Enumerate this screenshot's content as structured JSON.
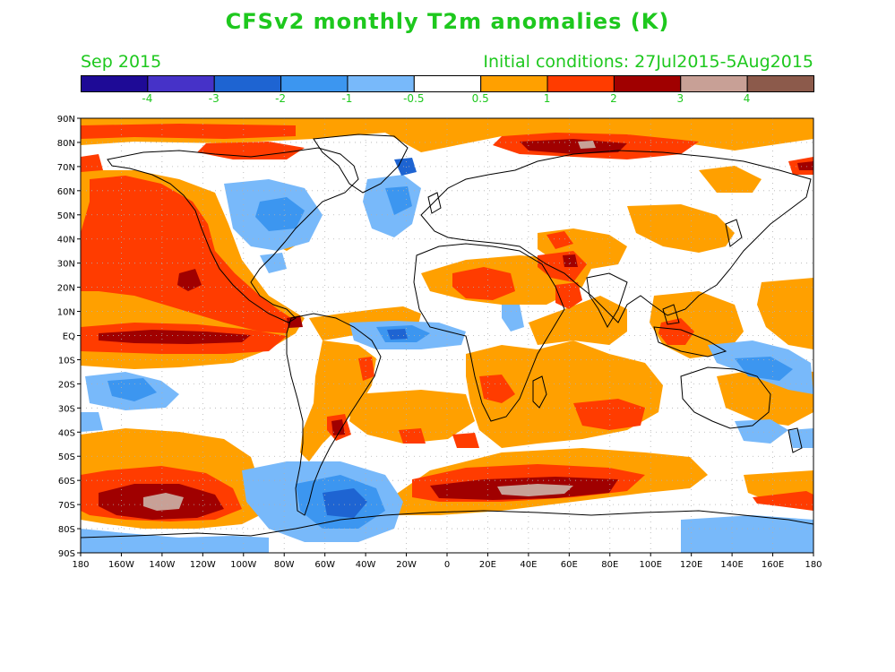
{
  "title": "CFSv2 monthly T2m anomalies (K)",
  "subtitle_left": "Sep 2015",
  "subtitle_right": "Initial conditions: 27Jul2015-5Aug2015",
  "colorbar": {
    "colors": [
      "#1e0a96",
      "#4632c8",
      "#1e64d2",
      "#3c96f0",
      "#78b9fa",
      "#ffffff",
      "#ffa000",
      "#ff3c00",
      "#a00000",
      "#c8a096",
      "#8c5a4b"
    ],
    "labels": [
      "-4",
      "-3",
      "-2",
      "-1",
      "-0.5",
      "0.5",
      "1",
      "2",
      "3",
      "4"
    ]
  },
  "axes": {
    "lat_labels": [
      "90N",
      "80N",
      "70N",
      "60N",
      "50N",
      "40N",
      "30N",
      "20N",
      "10N",
      "EQ",
      "10S",
      "20S",
      "30S",
      "40S",
      "50S",
      "60S",
      "70S",
      "80S",
      "90S"
    ],
    "lon_labels": [
      "180",
      "160W",
      "140W",
      "120W",
      "100W",
      "80W",
      "60W",
      "40W",
      "20W",
      "0",
      "20E",
      "40E",
      "60E",
      "80E",
      "100E",
      "120E",
      "140E",
      "160E",
      "180"
    ]
  }
}
